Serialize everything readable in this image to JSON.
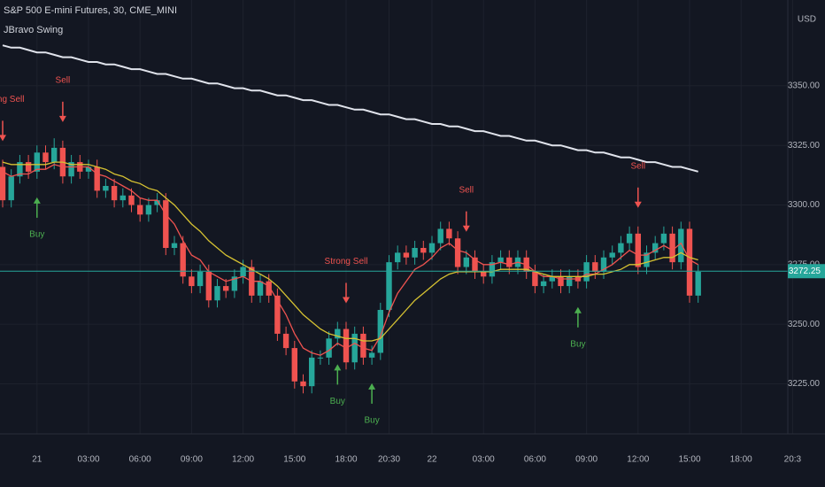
{
  "chart_data": {
    "type": "candlestick",
    "title": "S&P 500 E-mini Futures, 30, CME_MINI",
    "indicator": "JBravo Swing",
    "currency": "USD",
    "last_price": 3272.25,
    "up_color": "#26a69a",
    "down_color": "#ef5350",
    "grid": true,
    "categories": [
      null,
      null,
      null,
      null,
      "21",
      null,
      null,
      null,
      null,
      null,
      "03:00",
      null,
      null,
      null,
      null,
      null,
      "06:00",
      null,
      null,
      null,
      null,
      null,
      "09:00",
      null,
      null,
      null,
      null,
      null,
      "12:00",
      null,
      null,
      null,
      null,
      null,
      "15:00",
      null,
      null,
      null,
      null,
      null,
      "18:00",
      null,
      null,
      null,
      null,
      "20:30",
      null,
      null,
      null,
      null,
      "22",
      null,
      null,
      null,
      null,
      null,
      "03:00",
      null,
      null,
      null,
      null,
      null,
      "06:00",
      null,
      null,
      null,
      null,
      null,
      "09:00",
      null,
      null,
      null,
      null,
      null,
      "12:00",
      null,
      null,
      null,
      null,
      null,
      "15:00",
      null,
      null,
      null,
      null,
      null,
      "18:00",
      null,
      null,
      null,
      null,
      null,
      "20:3"
    ],
    "open": [
      3316,
      3302,
      3312,
      3318,
      3314,
      3322,
      3318,
      3324,
      3312,
      3318,
      3314,
      3316,
      3306,
      3308,
      3302,
      3304,
      3300,
      3296,
      3300,
      3302,
      3282,
      3284,
      3270,
      3266,
      3272,
      3260,
      3266,
      3264,
      3270,
      3274,
      3262,
      3268,
      3262,
      3246,
      3240,
      3226,
      3224,
      3236,
      3236,
      3244,
      3248,
      3234,
      3246,
      3236,
      3238,
      3256,
      3276,
      3280,
      3278,
      3282,
      3280,
      3284,
      3290,
      3286,
      3274,
      3278,
      3272,
      3270,
      3276,
      3278,
      3274,
      3278,
      3272,
      3266,
      3268,
      3270,
      3266,
      3270,
      3268,
      3276,
      3272,
      3278,
      3280,
      3284,
      3288,
      3274,
      3280,
      3284,
      3288,
      3276,
      3290,
      3262,
      null,
      null,
      null,
      null,
      null,
      null,
      null,
      null,
      null,
      null,
      null
    ],
    "high": [
      3319,
      3315,
      3321,
      3321,
      3325,
      3325,
      3328,
      3327,
      3321,
      3321,
      3319,
      3319,
      3311,
      3311,
      3307,
      3307,
      3303,
      3303,
      3305,
      3305,
      3287,
      3287,
      3273,
      3275,
      3275,
      3269,
      3269,
      3273,
      3277,
      3277,
      3271,
      3271,
      3265,
      3249,
      3243,
      3229,
      3239,
      3239,
      3247,
      3251,
      3251,
      3249,
      3249,
      3241,
      3259,
      3279,
      3283,
      3283,
      3285,
      3285,
      3287,
      3293,
      3293,
      3289,
      3281,
      3281,
      3275,
      3279,
      3281,
      3281,
      3281,
      3281,
      3275,
      3271,
      3273,
      3273,
      3273,
      3273,
      3279,
      3279,
      3281,
      3283,
      3287,
      3291,
      3291,
      3283,
      3287,
      3291,
      3291,
      3293,
      3293,
      3275,
      null,
      null,
      null,
      null,
      null,
      null,
      null,
      null,
      null,
      null,
      null
    ],
    "low": [
      3299,
      3299,
      3309,
      3311,
      3311,
      3315,
      3315,
      3309,
      3309,
      3311,
      3311,
      3303,
      3303,
      3299,
      3299,
      3297,
      3293,
      3293,
      3297,
      3279,
      3279,
      3267,
      3263,
      3263,
      3257,
      3257,
      3261,
      3261,
      3267,
      3259,
      3259,
      3259,
      3243,
      3237,
      3223,
      3221,
      3221,
      3233,
      3233,
      3241,
      3231,
      3231,
      3233,
      3233,
      3235,
      3253,
      3273,
      3275,
      3275,
      3277,
      3277,
      3281,
      3283,
      3271,
      3271,
      3269,
      3267,
      3267,
      3273,
      3271,
      3271,
      3269,
      3263,
      3263,
      3265,
      3263,
      3263,
      3265,
      3265,
      3269,
      3269,
      3275,
      3277,
      3281,
      3271,
      3271,
      3277,
      3281,
      3273,
      3273,
      3259,
      3259,
      null,
      null,
      null,
      null,
      null,
      null,
      null,
      null,
      null,
      null,
      null
    ],
    "close": [
      3302,
      3312,
      3318,
      3314,
      3322,
      3318,
      3324,
      3312,
      3318,
      3314,
      3316,
      3306,
      3308,
      3302,
      3304,
      3300,
      3296,
      3300,
      3302,
      3282,
      3284,
      3270,
      3266,
      3272,
      3260,
      3266,
      3264,
      3270,
      3274,
      3262,
      3268,
      3262,
      3246,
      3240,
      3226,
      3224,
      3236,
      3236,
      3244,
      3248,
      3234,
      3246,
      3236,
      3238,
      3256,
      3276,
      3280,
      3278,
      3282,
      3280,
      3284,
      3290,
      3286,
      3274,
      3278,
      3272,
      3270,
      3276,
      3278,
      3274,
      3278,
      3272,
      3266,
      3268,
      3270,
      3266,
      3270,
      3268,
      3276,
      3272,
      3278,
      3280,
      3284,
      3288,
      3274,
      3280,
      3284,
      3288,
      3276,
      3290,
      3262,
      3272,
      null,
      null,
      null,
      null,
      null,
      null,
      null,
      null,
      null,
      null,
      null
    ],
    "series": [
      {
        "color": "#e0e3eb",
        "values": [
          3367,
          3366,
          3366,
          3365,
          3364,
          3364,
          3363,
          3362,
          3362,
          3361,
          3360,
          3360,
          3359,
          3359,
          3358,
          3357,
          3357,
          3356,
          3355,
          3355,
          3354,
          3353,
          3353,
          3352,
          3351,
          3351,
          3350,
          3349,
          3349,
          3348,
          3348,
          3347,
          3346,
          3346,
          3345,
          3344,
          3344,
          3343,
          3342,
          3342,
          3341,
          3340,
          3340,
          3339,
          3338,
          3338,
          3337,
          3336,
          3336,
          3335,
          3334,
          3334,
          3333,
          3333,
          3332,
          3331,
          3331,
          3330,
          3329,
          3329,
          3328,
          3327,
          3327,
          3326,
          3325,
          3325,
          3324,
          3323,
          3323,
          3322,
          3322,
          3321,
          3320,
          3320,
          3319,
          3318,
          3318,
          3317,
          3316,
          3316,
          3315,
          3314,
          null,
          null,
          null,
          null,
          null,
          null,
          null,
          null,
          null,
          null,
          null
        ]
      },
      {
        "color": "#ef5350",
        "values": [
          3314,
          3312,
          3313,
          3313,
          3315,
          3315,
          3317,
          3316,
          3316,
          3316,
          3316,
          3313,
          3312,
          3310,
          3308,
          3306,
          3303,
          3302,
          3302,
          3296,
          3292,
          3285,
          3279,
          3277,
          3272,
          3270,
          3268,
          3269,
          3270,
          3268,
          3268,
          3266,
          3260,
          3254,
          3246,
          3240,
          3238,
          3237,
          3239,
          3242,
          3240,
          3242,
          3240,
          3239,
          3245,
          3255,
          3263,
          3268,
          3273,
          3275,
          3278,
          3282,
          3284,
          3281,
          3280,
          3277,
          3275,
          3275,
          3276,
          3275,
          3276,
          3275,
          3272,
          3270,
          3270,
          3269,
          3269,
          3269,
          3271,
          3271,
          3273,
          3275,
          3278,
          3281,
          3279,
          3279,
          3281,
          3283,
          3281,
          3284,
          3277,
          3275,
          null,
          null,
          null,
          null,
          null,
          null,
          null,
          null,
          null,
          null,
          null
        ]
      },
      {
        "color": "#d6c232",
        "values": [
          3318,
          3317,
          3317,
          3317,
          3317,
          3317,
          3318,
          3318,
          3317,
          3317,
          3317,
          3316,
          3315,
          3313,
          3312,
          3310,
          3309,
          3307,
          3306,
          3303,
          3300,
          3296,
          3292,
          3289,
          3285,
          3282,
          3279,
          3277,
          3275,
          3273,
          3271,
          3269,
          3266,
          3262,
          3258,
          3254,
          3251,
          3248,
          3246,
          3245,
          3244,
          3244,
          3243,
          3243,
          3244,
          3248,
          3252,
          3256,
          3260,
          3263,
          3266,
          3269,
          3271,
          3272,
          3272,
          3272,
          3272,
          3272,
          3273,
          3273,
          3273,
          3273,
          3272,
          3271,
          3270,
          3270,
          3270,
          3270,
          3270,
          3271,
          3271,
          3272,
          3273,
          3275,
          3275,
          3276,
          3277,
          3278,
          3278,
          3280,
          3278,
          3277,
          null,
          null,
          null,
          null,
          null,
          null,
          null,
          null,
          null,
          null,
          null
        ]
      }
    ],
    "annotations": [
      {
        "text": "Strong Sell",
        "x": 0,
        "position": "above",
        "color": "#ef5350"
      },
      {
        "text": "Sell",
        "x": 7,
        "position": "above",
        "color": "#ef5350"
      },
      {
        "text": "Buy",
        "x": 4,
        "position": "below",
        "color": "#4caf50"
      },
      {
        "text": "Strong Sell",
        "x": 40,
        "position": "above",
        "color": "#ef5350"
      },
      {
        "text": "Buy",
        "x": 39,
        "position": "below",
        "color": "#4caf50"
      },
      {
        "text": "Buy",
        "x": 43,
        "position": "below",
        "color": "#4caf50"
      },
      {
        "text": "Sell",
        "x": 54,
        "position": "above",
        "color": "#ef5350"
      },
      {
        "text": "Buy",
        "x": 67,
        "position": "below",
        "color": "#4caf50"
      },
      {
        "text": "Sell",
        "x": 74,
        "position": "above",
        "color": "#ef5350"
      }
    ],
    "ylim": [
      3204,
      3386
    ],
    "yticks": [
      {
        "value": 3225,
        "label": "3225.00"
      },
      {
        "value": 3250,
        "label": "3250.00"
      },
      {
        "value": 3275,
        "label": "3275.00"
      },
      {
        "value": 3300,
        "label": "3300.00"
      },
      {
        "value": 3325,
        "label": "3325.00"
      },
      {
        "value": 3350,
        "label": "3350.00"
      }
    ]
  }
}
